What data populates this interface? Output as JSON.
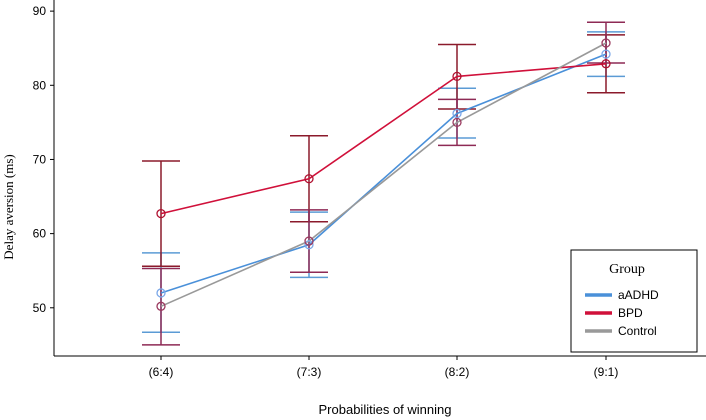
{
  "chart_data": {
    "type": "line",
    "xlabel": "Probabilities of winning",
    "ylabel": "Delay aversion (ms)",
    "categories": [
      "(6:4)",
      "(7:3)",
      "(8:2)",
      "(9:1)"
    ],
    "ylim": [
      43.5,
      91.5
    ],
    "yticks": [
      50,
      60,
      70,
      80,
      90
    ],
    "grid": false,
    "error_bars": true,
    "series": [
      {
        "name": "aADHD",
        "color": "#4a90d9",
        "values": [
          52,
          58.5,
          76.2,
          84.2
        ],
        "lower": [
          46.7,
          54.1,
          72.9,
          81.2
        ],
        "upper": [
          57.4,
          62.9,
          79.6,
          87.2
        ]
      },
      {
        "name": "BPD",
        "color": "#d0103a",
        "values": [
          62.7,
          67.4,
          81.2,
          82.9
        ],
        "lower": [
          55.6,
          61.6,
          76.8,
          79.0
        ],
        "upper": [
          69.8,
          73.2,
          85.5,
          86.8
        ]
      },
      {
        "name": "Control",
        "color": "#999999",
        "values": [
          50.2,
          59,
          75,
          85.7
        ],
        "lower": [
          45.0,
          54.8,
          71.9,
          83.0
        ],
        "upper": [
          55.3,
          63.2,
          78.1,
          88.5
        ]
      }
    ],
    "legend": {
      "title": "Group",
      "position": "bottom-right"
    }
  }
}
